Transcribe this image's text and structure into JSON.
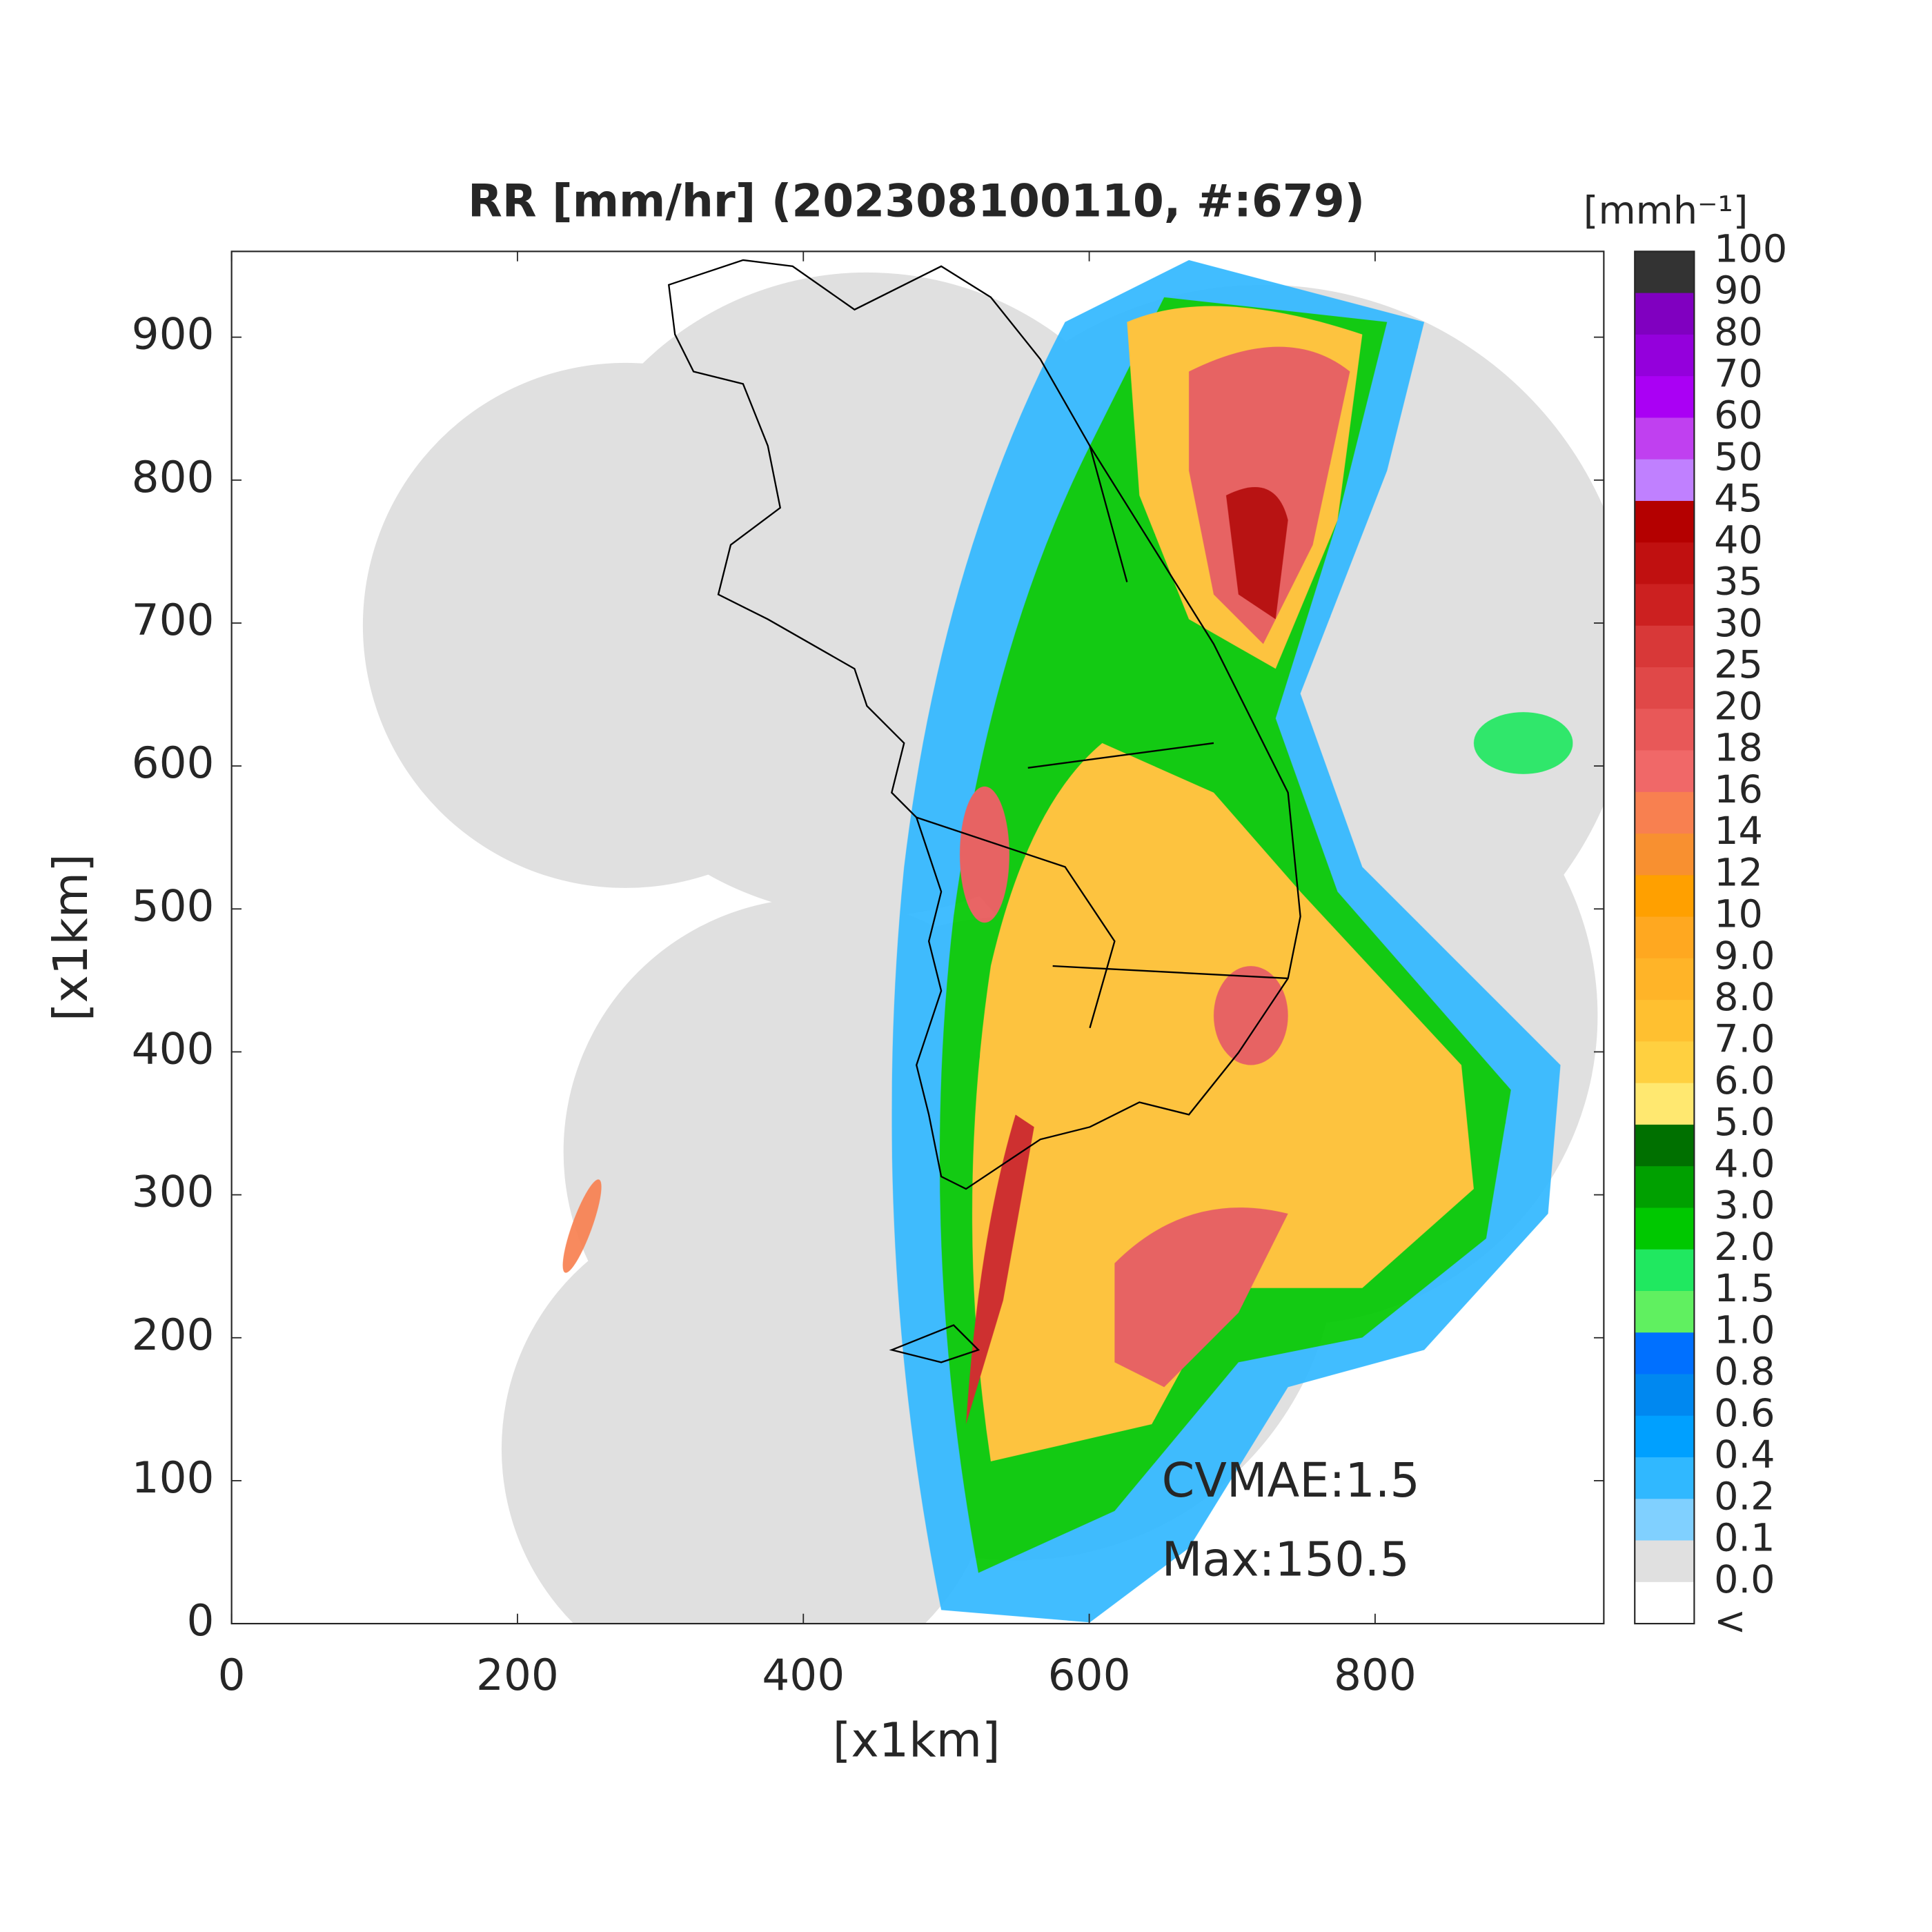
{
  "title": "RR [mm/hr] (202308100110, #:679)",
  "x_axis": {
    "label": "[x1km]",
    "lim": [
      0,
      960
    ],
    "ticks": [
      0,
      200,
      400,
      600,
      800
    ]
  },
  "y_axis": {
    "label": "[x1km]",
    "lim": [
      0,
      960
    ],
    "ticks": [
      0,
      100,
      200,
      300,
      400,
      500,
      600,
      700,
      800,
      900
    ]
  },
  "colorbar": {
    "unit": "[mmh⁻¹]",
    "labels": [
      "100",
      "90",
      "80",
      "70",
      "60",
      "50",
      "45",
      "40",
      "35",
      "30",
      "25",
      "20",
      "18",
      "16",
      "14",
      "12",
      "10",
      "9.0",
      "8.0",
      "7.0",
      "6.0",
      "5.0",
      "4.0",
      "3.0",
      "2.0",
      "1.5",
      "1.0",
      "0.8",
      "0.6",
      "0.4",
      "0.2",
      "0.1",
      "0.0",
      "<"
    ],
    "colors": [
      "#333333",
      "#8000c0",
      "#9400dc",
      "#aa00f4",
      "#c040f0",
      "#c080ff",
      "#b40000",
      "#c01010",
      "#cc2020",
      "#d83838",
      "#e04848",
      "#e85858",
      "#f06868",
      "#f88050",
      "#f89030",
      "#ffa000",
      "#ffa820",
      "#ffb428",
      "#ffc030",
      "#ffd040",
      "#ffe870",
      "#007000",
      "#00a000",
      "#00c800",
      "#20e860",
      "#60f060",
      "#0070ff",
      "#0088f0",
      "#00a0ff",
      "#30b8ff",
      "#80d0ff",
      "#e0e0e0",
      "#ffffff"
    ]
  },
  "annotations": [
    "CVMAE:1.5",
    "Max:150.5"
  ]
}
